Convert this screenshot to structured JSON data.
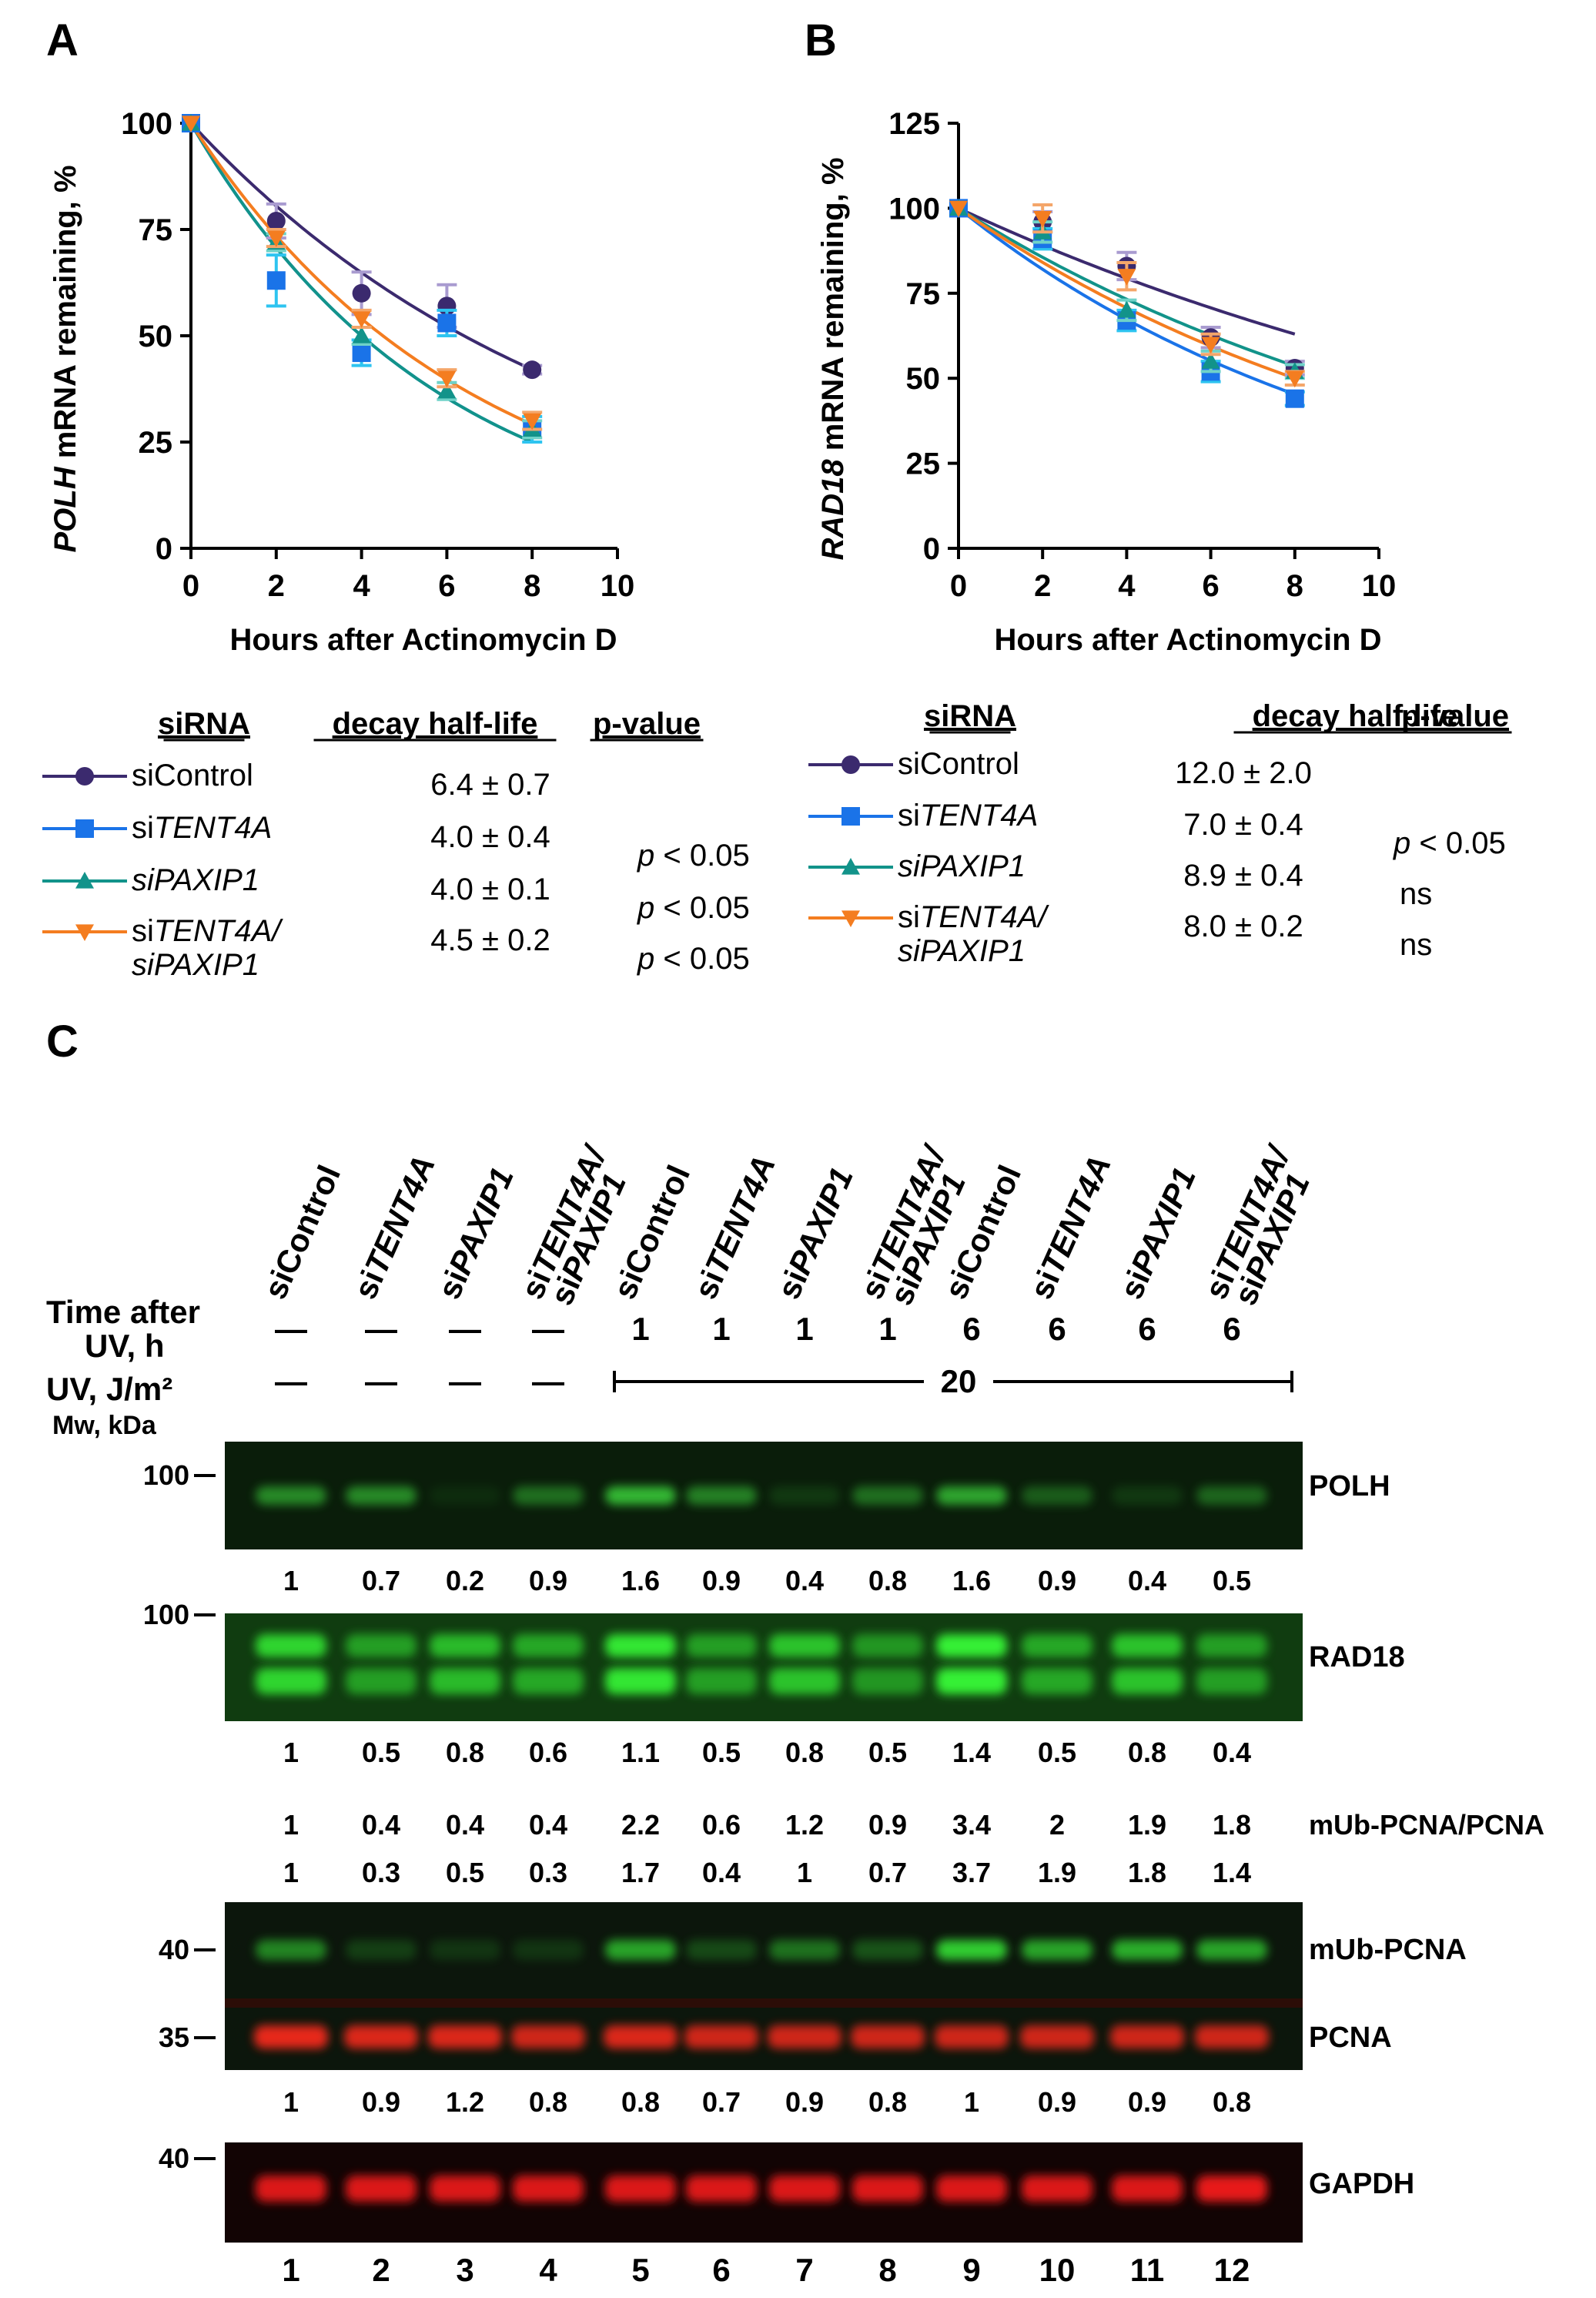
{
  "panel_labels": {
    "a": "A",
    "b": "B",
    "c": "C"
  },
  "chart_data": [
    {
      "id": "A",
      "type": "line",
      "title": "",
      "ylabel_italic": "POLH",
      "ylabel_rest": " mRNA remaining, %",
      "xlabel": "Hours after Actinomycin D",
      "xlim": [
        0,
        10
      ],
      "ylim": [
        0,
        100
      ],
      "xticks": [
        0,
        2,
        4,
        6,
        8,
        10
      ],
      "yticks": [
        0,
        25,
        50,
        75,
        100
      ],
      "x": [
        0,
        2,
        4,
        6,
        8
      ],
      "series": [
        {
          "name": "siControl",
          "color": "#3b2a6e",
          "err_color": "#a99bd0",
          "marker": "circle",
          "values": [
            100,
            77,
            60,
            57,
            42
          ],
          "errors": [
            0,
            4,
            5,
            5,
            1
          ],
          "half_life": 6.4
        },
        {
          "name": "siTENT4A",
          "color": "#1a73e8",
          "err_color": "#2ec4f0",
          "marker": "square",
          "values": [
            100,
            63,
            46,
            53,
            28
          ],
          "errors": [
            0,
            6,
            3,
            3,
            3
          ],
          "half_life": 4.0
        },
        {
          "name": "siPAXIP1",
          "color": "#12938a",
          "err_color": "#6fd2c8",
          "marker": "triangle-up",
          "values": [
            100,
            72,
            50,
            37,
            28
          ],
          "errors": [
            0,
            2,
            2,
            2,
            2
          ],
          "half_life": 4.0
        },
        {
          "name": "siTENT4A/siPAXIP1",
          "color": "#f47d20",
          "err_color": "#f4a66a",
          "marker": "triangle-down",
          "values": [
            100,
            73,
            54,
            40,
            30
          ],
          "errors": [
            0,
            2,
            2,
            2,
            2
          ],
          "half_life": 4.5
        }
      ],
      "legend": {
        "headers": {
          "sirna": "siRNA",
          "half_life": "decay half-life",
          "pvalue": "p-value"
        },
        "rows": [
          {
            "pre": "siControl",
            "it": "",
            "line2": "",
            "half": "6.4 ± 0.7",
            "p_it": "",
            "p_rest": ""
          },
          {
            "pre": "si",
            "it": "TENT4A",
            "line2": "",
            "half": "4.0 ± 0.4",
            "p_it": "p",
            "p_rest": " < 0.05"
          },
          {
            "pre": "",
            "it": "siPAXIP1",
            "line2": "",
            "half": "4.0 ± 0.1",
            "p_it": "p",
            "p_rest": " < 0.05"
          },
          {
            "pre": "si",
            "it": "TENT4A/",
            "line2": "siPAXIP1",
            "half": "4.5 ± 0.2",
            "p_it": "p",
            "p_rest": " < 0.05"
          }
        ]
      }
    },
    {
      "id": "B",
      "type": "line",
      "title": "",
      "ylabel_italic": "RAD18",
      "ylabel_rest": " mRNA remaining, %",
      "xlabel": "Hours after Actinomycin D",
      "xlim": [
        0,
        10
      ],
      "ylim": [
        0,
        125
      ],
      "xticks": [
        0,
        2,
        4,
        6,
        8,
        10
      ],
      "yticks": [
        0,
        25,
        50,
        75,
        100,
        125
      ],
      "x": [
        0,
        2,
        4,
        6,
        8
      ],
      "series": [
        {
          "name": "siControl",
          "color": "#3b2a6e",
          "err_color": "#a99bd0",
          "marker": "circle",
          "values": [
            100,
            96,
            83,
            62,
            53
          ],
          "errors": [
            0,
            3,
            4,
            3,
            2
          ],
          "half_life": 12.0
        },
        {
          "name": "siTENT4A",
          "color": "#1a73e8",
          "err_color": "#2ec4f0",
          "marker": "square",
          "values": [
            100,
            91,
            67,
            52,
            44
          ],
          "errors": [
            0,
            3,
            3,
            3,
            2
          ],
          "half_life": 7.0
        },
        {
          "name": "siPAXIP1",
          "color": "#12938a",
          "err_color": "#6fd2c8",
          "marker": "triangle-up",
          "values": [
            100,
            93,
            70,
            55,
            52
          ],
          "errors": [
            0,
            3,
            3,
            3,
            2
          ],
          "half_life": 8.9
        },
        {
          "name": "siTENT4A/siPAXIP1",
          "color": "#f47d20",
          "err_color": "#f4a66a",
          "marker": "triangle-down",
          "values": [
            100,
            97,
            80,
            60,
            50
          ],
          "errors": [
            0,
            4,
            4,
            3,
            2
          ],
          "half_life": 8.0
        }
      ],
      "legend": {
        "headers": {
          "sirna": "siRNA",
          "half_life": "decay half-life",
          "pvalue": "p-value"
        },
        "rows": [
          {
            "pre": "siControl",
            "it": "",
            "line2": "",
            "half": "12.0 ± 2.0",
            "p_it": "",
            "p_rest": ""
          },
          {
            "pre": "si",
            "it": "TENT4A",
            "line2": "",
            "half": "7.0 ± 0.4",
            "p_it": "p",
            "p_rest": " < 0.05"
          },
          {
            "pre": "",
            "it": "siPAXIP1",
            "line2": "",
            "half": "8.9 ± 0.4",
            "p_it": "",
            "p_rest": "ns"
          },
          {
            "pre": "si",
            "it": "TENT4A/",
            "line2": "siPAXIP1",
            "half": "8.0 ± 0.2",
            "p_it": "",
            "p_rest": "ns"
          }
        ]
      }
    }
  ],
  "blot": {
    "lane_labels": [
      {
        "pre": "siControl",
        "it": "",
        "line2": ""
      },
      {
        "pre": "si",
        "it": "TENT4A",
        "line2": ""
      },
      {
        "pre": "si",
        "it": "PAXIP1",
        "line2": ""
      },
      {
        "pre": "si",
        "it": "TENT4A/",
        "line2": "siPAXIP1"
      },
      {
        "pre": "siControl",
        "it": "",
        "line2": ""
      },
      {
        "pre": "si",
        "it": "TENT4A",
        "line2": ""
      },
      {
        "pre": "si",
        "it": "PAXIP1",
        "line2": ""
      },
      {
        "pre": "si",
        "it": "TENT4A/",
        "line2": "siPAXIP1"
      },
      {
        "pre": "siControl",
        "it": "",
        "line2": ""
      },
      {
        "pre": "si",
        "it": "TENT4A",
        "line2": ""
      },
      {
        "pre": "si",
        "it": "PAXIP1",
        "line2": ""
      },
      {
        "pre": "si",
        "it": "TENT4A/",
        "line2": "siPAXIP1"
      }
    ],
    "time_label_1": "Time after",
    "time_label_2": "UV, h",
    "uv_label": "UV, J/m²",
    "mw_label": "Mw, kDa",
    "time_values": [
      "—",
      "—",
      "—",
      "—",
      "1",
      "1",
      "1",
      "1",
      "6",
      "6",
      "6",
      "6"
    ],
    "uv_values": [
      "—",
      "—",
      "—",
      "—"
    ],
    "uv_dose": "20",
    "lane_numbers": [
      "1",
      "2",
      "3",
      "4",
      "5",
      "6",
      "7",
      "8",
      "9",
      "10",
      "11",
      "12"
    ],
    "polh": {
      "label": "POLH",
      "mw": "100",
      "quant": [
        "1",
        "0.7",
        "0.2",
        "0.9",
        "1.6",
        "0.9",
        "0.4",
        "0.8",
        "1.6",
        "0.9",
        "0.4",
        "0.5"
      ],
      "intensity": [
        0.6,
        0.6,
        0.08,
        0.45,
        0.85,
        0.55,
        0.15,
        0.45,
        0.75,
        0.35,
        0.15,
        0.4
      ]
    },
    "rad18": {
      "label": "RAD18",
      "mw": "100",
      "quant": [
        "1",
        "0.5",
        "0.8",
        "0.6",
        "1.1",
        "0.5",
        "0.8",
        "0.5",
        "1.4",
        "0.5",
        "0.8",
        "0.4"
      ],
      "intensity": [
        0.85,
        0.55,
        0.7,
        0.6,
        0.95,
        0.55,
        0.75,
        0.5,
        1.0,
        0.6,
        0.75,
        0.55
      ]
    },
    "ratio": {
      "label": "mUb-PCNA/PCNA",
      "values": [
        "1",
        "0.4",
        "0.4",
        "0.4",
        "2.2",
        "0.6",
        "1.2",
        "0.9",
        "3.4",
        "2",
        "1.9",
        "1.8"
      ]
    },
    "mub_quant": [
      "1",
      "0.3",
      "0.5",
      "0.3",
      "1.7",
      "0.4",
      "1",
      "0.7",
      "3.7",
      "1.9",
      "1.8",
      "1.4"
    ],
    "mub": {
      "label": "mUb-PCNA",
      "mw": "40",
      "intensity": [
        0.55,
        0.2,
        0.15,
        0.15,
        0.7,
        0.25,
        0.45,
        0.3,
        0.9,
        0.7,
        0.75,
        0.7
      ]
    },
    "pcna": {
      "label": "PCNA",
      "mw": "35",
      "quant": [
        "1",
        "0.9",
        "1.2",
        "0.8",
        "0.8",
        "0.7",
        "0.9",
        "0.8",
        "1",
        "0.9",
        "0.9",
        "0.8"
      ],
      "intensity": [
        0.9,
        0.85,
        0.85,
        0.8,
        0.85,
        0.8,
        0.8,
        0.8,
        0.8,
        0.8,
        0.8,
        0.8
      ]
    },
    "gapdh": {
      "label": "GAPDH",
      "mw": "40",
      "intensity": [
        0.85,
        0.85,
        0.85,
        0.85,
        0.85,
        0.85,
        0.85,
        0.85,
        0.85,
        0.85,
        0.85,
        0.9
      ]
    }
  }
}
